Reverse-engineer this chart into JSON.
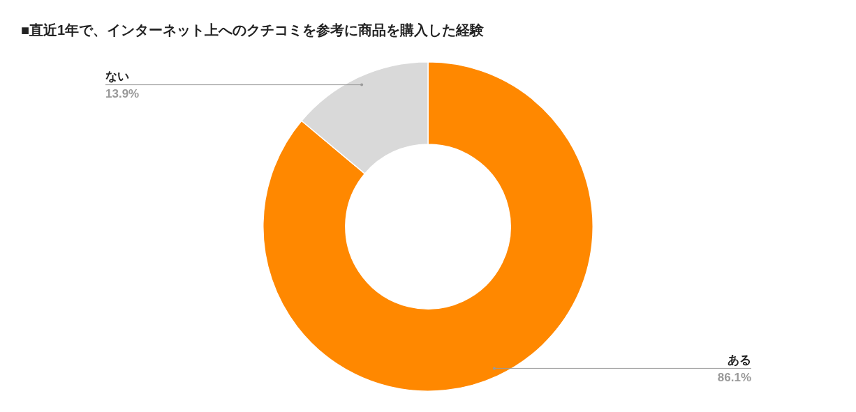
{
  "chart_data": {
    "type": "donut",
    "title": "■直近1年で、インターネット上へのクチコミを参考に商品を購入した経験",
    "categories": [
      "ある",
      "ない"
    ],
    "values": [
      86.1,
      13.9
    ],
    "colors": [
      "#ff8800",
      "#d9d9d9"
    ],
    "value_labels": [
      "86.1%",
      "13.9%"
    ],
    "legend": false
  }
}
